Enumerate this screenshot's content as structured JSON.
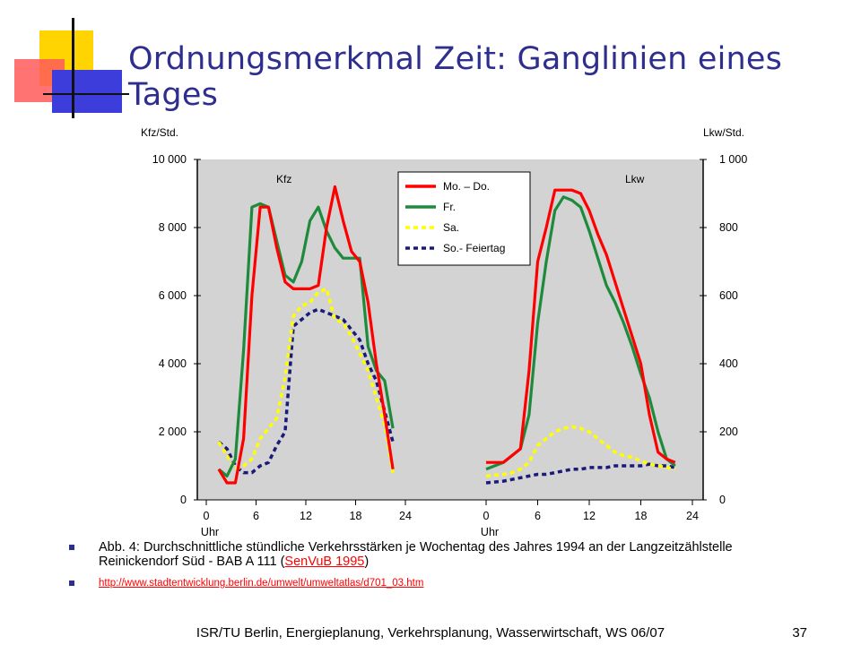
{
  "slide": {
    "title": "Ordnungsmerkmal Zeit: Ganglinien eines Tages",
    "footer": "ISR/TU Berlin, Energieplanung, Verkehrsplanung, Wasserwirtschaft, WS 06/07",
    "page_number": "37"
  },
  "bullets": {
    "caption_before_link": "Abb. 4: Durchschnittliche stündliche Verkehrsstärken je Wochentag des Jahres 1994 an der Langzeitzählstelle Reinickendorf Süd - BAB A 111 (",
    "caption_link": "SenVuB 1995",
    "caption_after_link": ")",
    "url": "http://www.stadtentwicklung.berlin.de/umwelt/umweltatlas/d701_03.htm"
  },
  "colors": {
    "title": "#2e2e8f",
    "mo_do": "#ff0000",
    "fr": "#1e8a3c",
    "sa": "#ffff00",
    "so": "#1a1a7a",
    "plot_bg": "#d3d3d3"
  },
  "chart_data": [
    {
      "type": "line",
      "panel_label": "Kfz",
      "ylabel": "Kfz/Std.",
      "xlabel": "Uhr",
      "ylim": [
        0,
        10000
      ],
      "yticks": [
        "0",
        "2 000",
        "4 000",
        "6 000",
        "8 000",
        "10 000"
      ],
      "xlim": [
        0,
        24
      ],
      "xticks": [
        "0",
        "6",
        "12",
        "18",
        "24"
      ],
      "grid": false,
      "legend": {
        "position": "top-right",
        "entries": [
          "Mo. – Do.",
          "Fr.",
          "Sa.",
          "So.- Feiertag"
        ]
      },
      "series": [
        {
          "name": "Mo. – Do.",
          "color": "#ff0000",
          "style": "solid",
          "x": [
            1.5,
            2.5,
            3.5,
            4.5,
            5.5,
            6.5,
            7.5,
            8.5,
            9.5,
            10.5,
            11.5,
            12.5,
            13.5,
            14.5,
            15.5,
            16.5,
            17.5,
            18.5,
            19.5,
            20.5,
            21.5,
            22.5,
            23.5
          ],
          "y": [
            900,
            500,
            500,
            1800,
            6000,
            8600,
            8600,
            7400,
            6400,
            6200,
            6200,
            6200,
            6300,
            8000,
            9200,
            8200,
            7300,
            7000,
            5800,
            4000,
            2500,
            900,
            null
          ]
        },
        {
          "name": "Fr.",
          "color": "#1e8a3c",
          "style": "solid",
          "x": [
            1.5,
            2.5,
            3.5,
            4.5,
            5.5,
            6.5,
            7.5,
            8.5,
            9.5,
            10.5,
            11.5,
            12.5,
            13.5,
            14.5,
            15.5,
            16.5,
            17.5,
            18.5,
            19.5,
            20.5,
            21.5,
            22.5,
            23.5
          ],
          "y": [
            900,
            700,
            1200,
            4400,
            8600,
            8700,
            8600,
            7600,
            6600,
            6400,
            7000,
            8200,
            8600,
            7900,
            7400,
            7100,
            7100,
            7100,
            4500,
            3800,
            3500,
            2100,
            null
          ]
        },
        {
          "name": "Sa.",
          "color": "#ffff00",
          "style": "dashed",
          "x": [
            1.5,
            2.5,
            3.5,
            4.5,
            5.5,
            6.5,
            7.5,
            8.5,
            9.5,
            10.5,
            11.5,
            12.5,
            13.5,
            14.5,
            15.5,
            16.5,
            17.5,
            18.5,
            19.5,
            20.5,
            21.5,
            22.5,
            23.5
          ],
          "y": [
            1700,
            1300,
            900,
            1000,
            1200,
            1800,
            2100,
            2400,
            3600,
            5400,
            5700,
            5800,
            6100,
            6200,
            5300,
            5200,
            4800,
            4300,
            3800,
            3000,
            2200,
            800,
            null
          ]
        },
        {
          "name": "So.- Feiertag",
          "color": "#1a1a7a",
          "style": "dashed",
          "x": [
            1.5,
            2.5,
            3.5,
            4.5,
            5.5,
            6.5,
            7.5,
            8.5,
            9.5,
            10.5,
            11.5,
            12.5,
            13.5,
            14.5,
            15.5,
            16.5,
            17.5,
            18.5,
            19.5,
            20.5,
            21.5,
            22.5,
            23.5
          ],
          "y": [
            1700,
            1500,
            1000,
            800,
            800,
            1000,
            1100,
            1600,
            2000,
            5100,
            5300,
            5500,
            5600,
            5500,
            5400,
            5300,
            5000,
            4700,
            4000,
            3500,
            2600,
            1700,
            null
          ]
        }
      ]
    },
    {
      "type": "line",
      "panel_label": "Lkw",
      "ylabel": "Lkw/Std.",
      "xlabel": "Uhr",
      "ylim": [
        0,
        1000
      ],
      "yticks": [
        "0",
        "200",
        "400",
        "600",
        "800",
        "1 000"
      ],
      "xlim": [
        0,
        24
      ],
      "xticks": [
        "0",
        "6",
        "12",
        "18",
        "24"
      ],
      "grid": false,
      "series": [
        {
          "name": "Mo. – Do.",
          "color": "#ff0000",
          "style": "solid",
          "x": [
            0,
            2,
            3,
            4,
            5,
            6,
            7,
            8,
            9,
            10,
            11,
            12,
            13,
            14,
            15,
            16,
            17,
            18,
            19,
            20,
            21,
            22,
            23
          ],
          "y": [
            110,
            110,
            130,
            150,
            380,
            700,
            800,
            910,
            910,
            910,
            900,
            850,
            780,
            720,
            640,
            560,
            480,
            400,
            250,
            140,
            120,
            110,
            null
          ]
        },
        {
          "name": "Fr.",
          "color": "#1e8a3c",
          "style": "solid",
          "x": [
            0,
            2,
            3,
            4,
            5,
            6,
            7,
            8,
            9,
            10,
            11,
            12,
            13,
            14,
            15,
            16,
            17,
            18,
            19,
            20,
            21,
            22,
            23
          ],
          "y": [
            90,
            110,
            130,
            150,
            250,
            520,
            700,
            850,
            890,
            880,
            860,
            790,
            710,
            630,
            580,
            520,
            450,
            370,
            300,
            200,
            120,
            100,
            null
          ]
        },
        {
          "name": "Sa.",
          "color": "#ffff00",
          "style": "dashed",
          "x": [
            0,
            2,
            3,
            4,
            5,
            6,
            7,
            8,
            9,
            10,
            11,
            12,
            13,
            14,
            15,
            16,
            17,
            18,
            19,
            20,
            21,
            22,
            23
          ],
          "y": [
            70,
            75,
            80,
            90,
            110,
            160,
            180,
            200,
            210,
            215,
            210,
            200,
            180,
            160,
            140,
            130,
            125,
            115,
            105,
            100,
            95,
            90,
            null
          ]
        },
        {
          "name": "So.- Feiertag",
          "color": "#1a1a7a",
          "style": "dashed",
          "x": [
            0,
            2,
            3,
            4,
            5,
            6,
            7,
            8,
            9,
            10,
            11,
            12,
            13,
            14,
            15,
            16,
            17,
            18,
            19,
            20,
            21,
            22,
            23
          ],
          "y": [
            50,
            55,
            60,
            65,
            70,
            75,
            75,
            80,
            85,
            90,
            90,
            95,
            95,
            95,
            100,
            100,
            100,
            100,
            105,
            100,
            100,
            95,
            null
          ]
        }
      ]
    }
  ]
}
